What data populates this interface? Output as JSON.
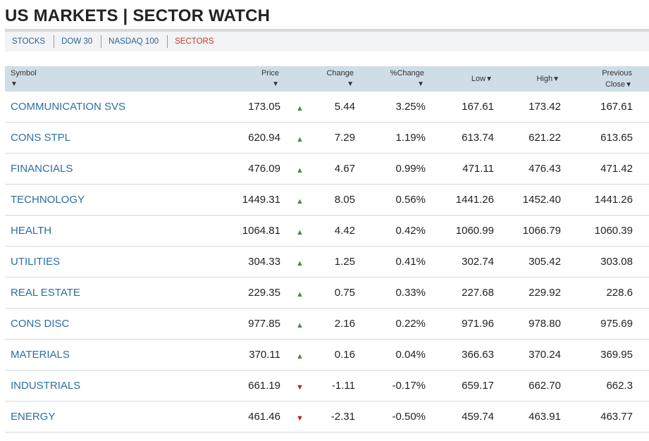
{
  "page": {
    "title": "US MARKETS | SECTOR WATCH"
  },
  "tabs": [
    {
      "label": "STOCKS",
      "active": false
    },
    {
      "label": "DOW 30",
      "active": false
    },
    {
      "label": "NASDAQ 100",
      "active": false
    },
    {
      "label": "SECTORS",
      "active": true
    }
  ],
  "columns": {
    "symbol": "Symbol",
    "price": "Price",
    "change": "Change",
    "pct_change": "%Change",
    "low": "Low",
    "high": "High",
    "prev_line1": "Previous",
    "prev_line2": "Close",
    "sort_arrow": "▼"
  },
  "colors": {
    "link": "#2a6ea6",
    "up": "#4a8a3a",
    "down": "#b0232b",
    "active_tab": "#c0392b",
    "header_bg": "#cfdde7"
  },
  "rows": [
    {
      "symbol": "COMMUNICATION SVS",
      "price": "173.05",
      "direction": "up",
      "arrow": "▲",
      "change": "5.44",
      "pct_change": "3.25%",
      "low": "167.61",
      "high": "173.42",
      "prev_close": "167.61"
    },
    {
      "symbol": "CONS STPL",
      "price": "620.94",
      "direction": "up",
      "arrow": "▲",
      "change": "7.29",
      "pct_change": "1.19%",
      "low": "613.74",
      "high": "621.22",
      "prev_close": "613.65"
    },
    {
      "symbol": "FINANCIALS",
      "price": "476.09",
      "direction": "up",
      "arrow": "▲",
      "change": "4.67",
      "pct_change": "0.99%",
      "low": "471.11",
      "high": "476.43",
      "prev_close": "471.42"
    },
    {
      "symbol": "TECHNOLOGY",
      "price": "1449.31",
      "direction": "up",
      "arrow": "▲",
      "change": "8.05",
      "pct_change": "0.56%",
      "low": "1441.26",
      "high": "1452.40",
      "prev_close": "1441.26"
    },
    {
      "symbol": "HEALTH",
      "price": "1064.81",
      "direction": "up",
      "arrow": "▲",
      "change": "4.42",
      "pct_change": "0.42%",
      "low": "1060.99",
      "high": "1066.79",
      "prev_close": "1060.39"
    },
    {
      "symbol": "UTILITIES",
      "price": "304.33",
      "direction": "up",
      "arrow": "▲",
      "change": "1.25",
      "pct_change": "0.41%",
      "low": "302.74",
      "high": "305.42",
      "prev_close": "303.08"
    },
    {
      "symbol": "REAL ESTATE",
      "price": "229.35",
      "direction": "up",
      "arrow": "▲",
      "change": "0.75",
      "pct_change": "0.33%",
      "low": "227.68",
      "high": "229.92",
      "prev_close": "228.6"
    },
    {
      "symbol": "CONS DISC",
      "price": "977.85",
      "direction": "up",
      "arrow": "▲",
      "change": "2.16",
      "pct_change": "0.22%",
      "low": "971.96",
      "high": "978.80",
      "prev_close": "975.69"
    },
    {
      "symbol": "MATERIALS",
      "price": "370.11",
      "direction": "up",
      "arrow": "▲",
      "change": "0.16",
      "pct_change": "0.04%",
      "low": "366.63",
      "high": "370.24",
      "prev_close": "369.95"
    },
    {
      "symbol": "INDUSTRIALS",
      "price": "661.19",
      "direction": "down",
      "arrow": "▼",
      "change": "-1.11",
      "pct_change": "-0.17%",
      "low": "659.17",
      "high": "662.70",
      "prev_close": "662.3"
    },
    {
      "symbol": "ENERGY",
      "price": "461.46",
      "direction": "down",
      "arrow": "▼",
      "change": "-2.31",
      "pct_change": "-0.50%",
      "low": "459.74",
      "high": "463.91",
      "prev_close": "463.77"
    }
  ]
}
